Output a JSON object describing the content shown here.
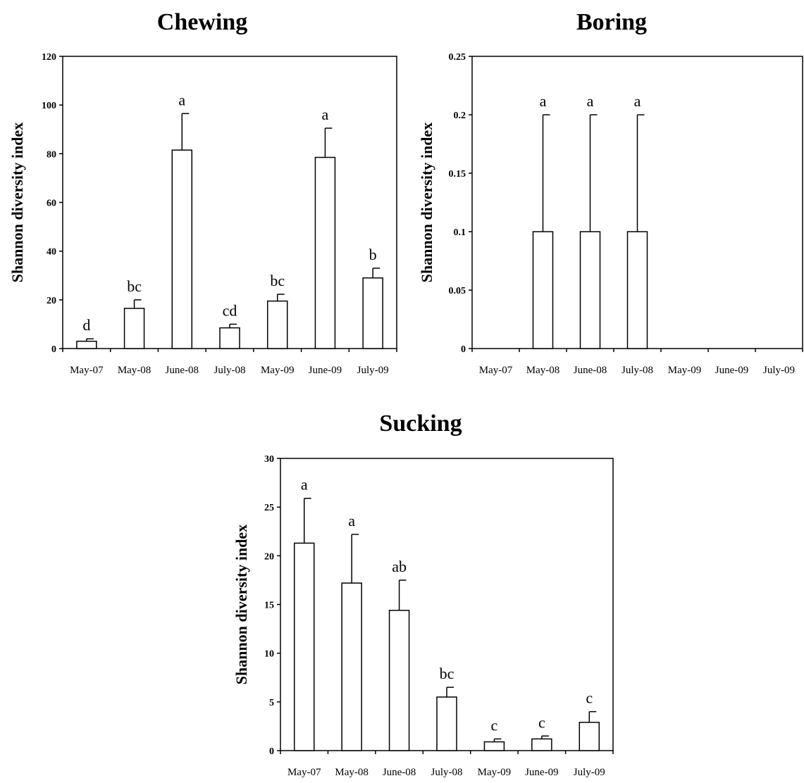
{
  "chart_data": [
    {
      "type": "bar",
      "title": "Chewing",
      "ylabel": "Shannon diversity index",
      "xlabel": "",
      "categories": [
        "May-07",
        "May-08",
        "June-08",
        "July-08",
        "May-09",
        "June-09",
        "July-09"
      ],
      "values": [
        3,
        16.5,
        81.5,
        8.5,
        19.5,
        78.5,
        29
      ],
      "errors": [
        1,
        3.5,
        15,
        1.5,
        2.8,
        12,
        4
      ],
      "letters": [
        "d",
        "bc",
        "a",
        "cd",
        "bc",
        "a",
        "b"
      ],
      "ylim": [
        0,
        120
      ],
      "yticks": [
        "0",
        "20",
        "40",
        "60",
        "80",
        "100",
        "120"
      ],
      "grid": false,
      "legend": "none"
    },
    {
      "type": "bar",
      "title": "Boring",
      "ylabel": "Shannon diversity index",
      "xlabel": "",
      "categories": [
        "May-07",
        "May-08",
        "June-08",
        "July-08",
        "May-09",
        "June-09",
        "July-09"
      ],
      "values": [
        0,
        0.1,
        0.1,
        0.1,
        0,
        0,
        0
      ],
      "errors": [
        0,
        0.1,
        0.1,
        0.1,
        0,
        0,
        0
      ],
      "letters": [
        "",
        "a",
        "a",
        "a",
        "",
        "",
        ""
      ],
      "ylim": [
        0,
        0.25
      ],
      "yticks": [
        "0",
        "0.05",
        "0.1",
        "0.15",
        "0.2",
        "0.25"
      ],
      "grid": false,
      "legend": "none"
    },
    {
      "type": "bar",
      "title": "Sucking",
      "ylabel": "Shannon diversity index",
      "xlabel": "",
      "categories": [
        "May-07",
        "May-08",
        "June-08",
        "July-08",
        "May-09",
        "June-09",
        "July-09"
      ],
      "values": [
        21.3,
        17.2,
        14.4,
        5.5,
        0.9,
        1.2,
        2.9
      ],
      "errors": [
        4.6,
        5,
        3.1,
        1,
        0.3,
        0.3,
        1.1
      ],
      "letters": [
        "a",
        "a",
        "ab",
        "bc",
        "c",
        "c",
        "c"
      ],
      "ylim": [
        0,
        30
      ],
      "yticks": [
        "0",
        "5",
        "10",
        "15",
        "20",
        "25",
        "30"
      ],
      "grid": false,
      "legend": "none"
    }
  ]
}
